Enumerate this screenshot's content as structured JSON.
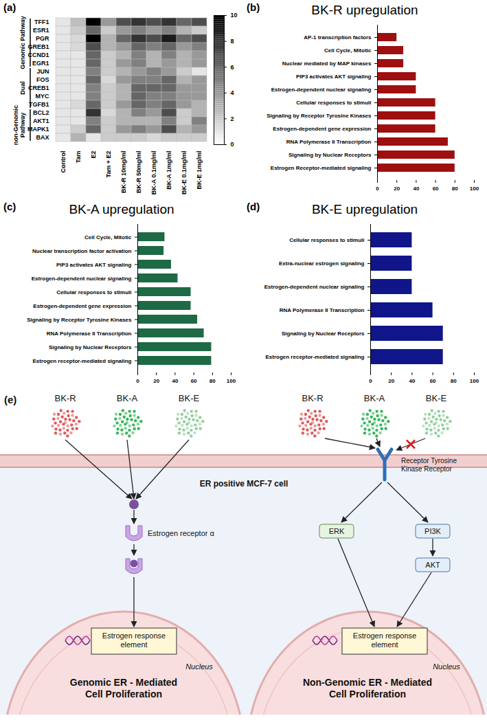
{
  "chart_data": [
    {
      "type": "heatmap",
      "panel": "(a)",
      "rows": [
        "TFF1",
        "ESR1",
        "PGR",
        "GREB1",
        "CCND1",
        "EGR1",
        "JUN",
        "FOS",
        "CREB1",
        "MYC",
        "TGFB1",
        "BCL2",
        "AKT1",
        "MAPK1",
        "BAX"
      ],
      "columns": [
        "Control",
        "Tam",
        "E2",
        "Tam + E2",
        "BK-R 10mg/ml",
        "BK-R 50mg/ml",
        "BK-A 0.1mg/ml",
        "BK-A 1mg/ml",
        "BK-E 0.1mg/ml",
        "BK-E 1mg/ml"
      ],
      "cells": [
        [
          1,
          2.5,
          10,
          4,
          7,
          8,
          7,
          8,
          6,
          7
        ],
        [
          1,
          2,
          6,
          2,
          4,
          5,
          4,
          5,
          3,
          2
        ],
        [
          1,
          1.5,
          10,
          3,
          6,
          8,
          7,
          9,
          6,
          7
        ],
        [
          1,
          1.5,
          7,
          3,
          4,
          6,
          5,
          6,
          4,
          5
        ],
        [
          1,
          1,
          6,
          2,
          3,
          5,
          3,
          5,
          3,
          4
        ],
        [
          1,
          1,
          6,
          2,
          4,
          5,
          3,
          4,
          3,
          4
        ],
        [
          1,
          1,
          5,
          2,
          3,
          4,
          5,
          4,
          2,
          1
        ],
        [
          1,
          1,
          6,
          1.5,
          4,
          5,
          5,
          6,
          3,
          4
        ],
        [
          1,
          1,
          5,
          2,
          3,
          6,
          6,
          6,
          4,
          4
        ],
        [
          1,
          1,
          5,
          2,
          3,
          6,
          5,
          5,
          4,
          4
        ],
        [
          1,
          1.5,
          6,
          2,
          4,
          6,
          5,
          6,
          4,
          3
        ],
        [
          1,
          1,
          8,
          1.5,
          3,
          5,
          4,
          7,
          2,
          3
        ],
        [
          1,
          1,
          5,
          2,
          3,
          3,
          3,
          5,
          2,
          5
        ],
        [
          1,
          2,
          6,
          2,
          4,
          5,
          4,
          7,
          3,
          4
        ],
        [
          1,
          3,
          1,
          2,
          2,
          2,
          1.5,
          2,
          2,
          2
        ]
      ],
      "row_groups": [
        {
          "label": "Genomic Pathway",
          "first": "TFF1",
          "last": "EGR1"
        },
        {
          "label": "Dual",
          "first": "JUN",
          "last": "TGFB1"
        },
        {
          "label": "non-Genomic Pathway",
          "first": "BCL2",
          "last": "BAX"
        }
      ],
      "colorbar": {
        "range": [
          0,
          10
        ],
        "ticks": [
          0,
          2,
          4,
          6,
          8,
          10
        ],
        "colors": [
          "#ffffff",
          "#000000"
        ]
      }
    },
    {
      "type": "bar",
      "panel": "(b)",
      "title": "BK-R upregulation",
      "orientation": "horizontal",
      "color": "#9e1010",
      "categories": [
        "AP-1 transcription factors",
        "Cell Cycle, Mitotic",
        "Nuclear mediated by MAP kinases",
        "PIP3 activates AKT signaling",
        "Estrogen-dependent nuclear signaling",
        "Cellular responses to stimuli",
        "Signaling by Receptor Tyrosine Kinases",
        "Estrogen-dependent gene expression",
        "RNA Polymerase II Transcription",
        "Signaling by Nuclear Receptors",
        "Estrogen Receptor-mediated signaling"
      ],
      "values": [
        20,
        27,
        27,
        40,
        40,
        60,
        60,
        60,
        73,
        80,
        80
      ],
      "xlim": [
        0,
        100
      ],
      "xticks": [
        0,
        20,
        40,
        60,
        80,
        100
      ]
    },
    {
      "type": "bar",
      "panel": "(c)",
      "title": "BK-A upregulation",
      "orientation": "horizontal",
      "color": "#1d6a45",
      "categories": [
        "Cell Cycle, Mitotic",
        "Nuclear transcription factor activation",
        "PIP3 activates AKT signaling",
        "Estrogen-dependent nuclear signaling",
        "Cellular responses to stimuli",
        "Estrogen-dependent gene expression",
        "Signaling by Receptor Tyrosine Kinases",
        "RNA Polymerase II Transcription",
        "Signaling by Nuclear Receptors",
        "Estrogen receptor-mediated signaling"
      ],
      "values": [
        29,
        28,
        36,
        43,
        57,
        57,
        64,
        71,
        79,
        79
      ],
      "xlim": [
        0,
        100
      ],
      "xticks": [
        0,
        20,
        40,
        60,
        80,
        100
      ]
    },
    {
      "type": "bar",
      "panel": "(d)",
      "title": "BK-E upregulation",
      "orientation": "horizontal",
      "color": "#10168a",
      "categories": [
        "Cellular responses to stimuli",
        "Extra-nuclear estrogen signaling",
        "Estrogen-dependent nuclear signaling",
        "RNA Polymerase II Transcription",
        "Signaling by Nuclear Receptors",
        "Estrogen receptor-mediated signaling"
      ],
      "values": [
        40,
        40,
        40,
        60,
        70,
        70
      ],
      "xlim": [
        0,
        100
      ],
      "xticks": [
        0,
        20,
        40,
        60,
        80,
        100
      ]
    }
  ],
  "diagram": {
    "panel": "(e)",
    "cell_label": "ER positive MCF-7 cell",
    "left": {
      "compounds": [
        {
          "name": "BK-R",
          "color": "#e05a5a"
        },
        {
          "name": "BK-A",
          "color": "#33b85a"
        },
        {
          "name": "BK-E",
          "color": "#93cf9f"
        }
      ],
      "receptor": "Estrogen receptor α",
      "element": "Estrogen response element",
      "nucleus": "Nucleus",
      "outcome": "Genomic ER - Mediated Cell Proliferation"
    },
    "right": {
      "compounds": [
        {
          "name": "BK-R",
          "color": "#e05a5a"
        },
        {
          "name": "BK-A",
          "color": "#33b85a"
        },
        {
          "name": "BK-E",
          "color": "#93cf9f"
        }
      ],
      "blocked": "BK-E",
      "receptor": "Receptor Tyrosine Kinase Receptor",
      "kinases": [
        "ERK",
        "PI3K",
        "AKT"
      ],
      "element": "Estrogen response element",
      "nucleus": "Nucleus",
      "outcome": "Non-Genomic ER - Mediated Cell Proliferation"
    }
  }
}
